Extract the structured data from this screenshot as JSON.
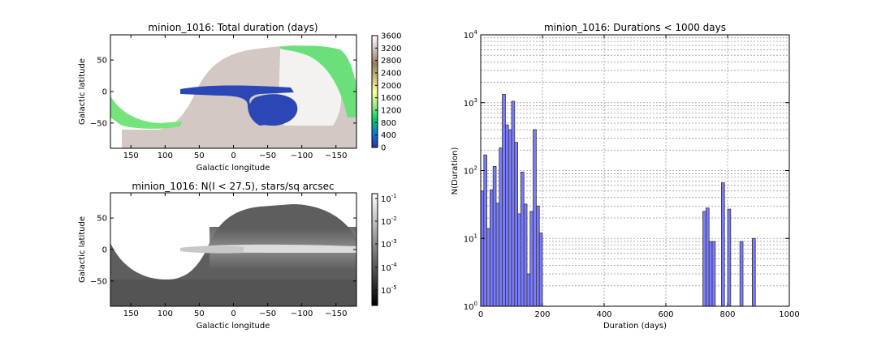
{
  "panel_map_duration": {
    "title": "minion_1016: Total duration (days)",
    "xlabel": "Galactic longitude",
    "ylabel": "Galactic latitude",
    "xticks": [
      "150",
      "100",
      "50",
      "0",
      "−50",
      "−100",
      "−150"
    ],
    "yticks": [
      "50",
      "0",
      "−50"
    ],
    "colorbar_ticks": [
      "3600",
      "3200",
      "2800",
      "2400",
      "2000",
      "1600",
      "1200",
      "800",
      "400",
      "0"
    ],
    "colormap": "terrain"
  },
  "panel_map_stars": {
    "title": "minion_1016: N(I < 27.5), stars/sq arcsec",
    "xlabel": "Galactic longitude",
    "ylabel": "Galactic latitude",
    "xticks": [
      "150",
      "100",
      "50",
      "0",
      "−50",
      "−100",
      "−150"
    ],
    "yticks": [
      "50",
      "0",
      "−50"
    ],
    "colorbar_ticks": [
      {
        "base": "10",
        "exp": "-1"
      },
      {
        "base": "10",
        "exp": "-2"
      },
      {
        "base": "10",
        "exp": "-3"
      },
      {
        "base": "10",
        "exp": "-4"
      },
      {
        "base": "10",
        "exp": "-5"
      }
    ],
    "colormap": "gray"
  },
  "chart_data": {
    "type": "bar",
    "title": "minion_1016: Durations < 1000 days",
    "xlabel": "Duration (days)",
    "ylabel": "N(Duration)",
    "xlim": [
      0,
      1000
    ],
    "ylim_log10": [
      0,
      4
    ],
    "yscale": "log",
    "grid": true,
    "bar_color": "#7b7bff",
    "xticks": [
      "0",
      "200",
      "400",
      "600",
      "800",
      "1000"
    ],
    "yticks": [
      {
        "base": "10",
        "exp": "0"
      },
      {
        "base": "10",
        "exp": "1"
      },
      {
        "base": "10",
        "exp": "2"
      },
      {
        "base": "10",
        "exp": "3"
      },
      {
        "base": "10",
        "exp": "4"
      }
    ],
    "bin_width": 10,
    "bins": [
      {
        "x": 0,
        "count": 50
      },
      {
        "x": 10,
        "count": 170
      },
      {
        "x": 20,
        "count": 14
      },
      {
        "x": 30,
        "count": 52
      },
      {
        "x": 40,
        "count": 115
      },
      {
        "x": 50,
        "count": 33
      },
      {
        "x": 60,
        "count": 215
      },
      {
        "x": 70,
        "count": 1330
      },
      {
        "x": 80,
        "count": 470
      },
      {
        "x": 90,
        "count": 400
      },
      {
        "x": 100,
        "count": 1050
      },
      {
        "x": 110,
        "count": 260
      },
      {
        "x": 120,
        "count": 23
      },
      {
        "x": 130,
        "count": 95
      },
      {
        "x": 140,
        "count": 32
      },
      {
        "x": 150,
        "count": 3
      },
      {
        "x": 160,
        "count": 25
      },
      {
        "x": 170,
        "count": 400
      },
      {
        "x": 180,
        "count": 30
      },
      {
        "x": 190,
        "count": 12
      },
      {
        "x": 720,
        "count": 25
      },
      {
        "x": 730,
        "count": 28
      },
      {
        "x": 740,
        "count": 9
      },
      {
        "x": 750,
        "count": 9
      },
      {
        "x": 780,
        "count": 66
      },
      {
        "x": 800,
        "count": 27
      },
      {
        "x": 840,
        "count": 9
      },
      {
        "x": 880,
        "count": 10
      }
    ]
  }
}
